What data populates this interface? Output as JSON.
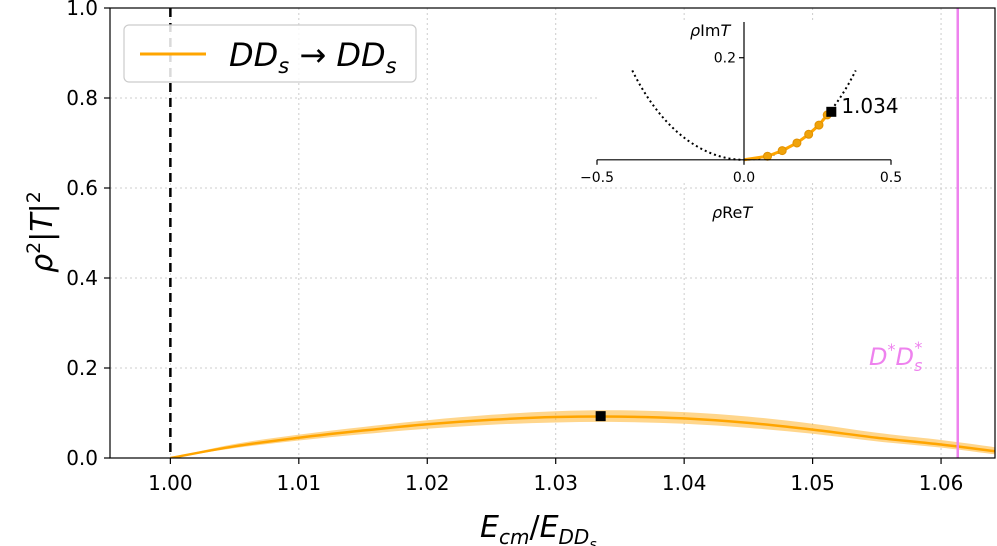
{
  "chart_data": [
    {
      "type": "line",
      "title": "",
      "xlabel": "E_cm / E_DDs",
      "ylabel": "ρ²|T|²",
      "xlim": [
        0.9953,
        1.0642
      ],
      "ylim": [
        0.0,
        1.0
      ],
      "grid": true,
      "legend": {
        "placement": "top-left",
        "entries": [
          {
            "label": "DDs → DDs",
            "color": "#ffa500"
          }
        ]
      },
      "x_ticks": [
        "1.00",
        "1.01",
        "1.02",
        "1.03",
        "1.04",
        "1.05",
        "1.06"
      ],
      "y_ticks": [
        "0.0",
        "0.2",
        "0.4",
        "0.6",
        "0.8",
        "1.0"
      ],
      "series": [
        {
          "name": "DDs → DDs",
          "color": "#ffa500",
          "x": [
            1.0,
            1.005,
            1.01,
            1.015,
            1.02,
            1.025,
            1.03,
            1.035,
            1.04,
            1.045,
            1.05,
            1.055,
            1.06,
            1.0642
          ],
          "y": [
            0.0,
            0.026,
            0.045,
            0.061,
            0.075,
            0.085,
            0.091,
            0.092,
            0.088,
            0.078,
            0.063,
            0.045,
            0.03,
            0.015
          ],
          "band_lower": [
            0.0,
            0.022,
            0.039,
            0.053,
            0.065,
            0.074,
            0.079,
            0.08,
            0.076,
            0.067,
            0.054,
            0.037,
            0.023,
            0.008
          ],
          "band_upper": [
            0.0,
            0.031,
            0.052,
            0.069,
            0.084,
            0.096,
            0.104,
            0.106,
            0.102,
            0.092,
            0.076,
            0.056,
            0.04,
            0.024
          ]
        }
      ],
      "markers": [
        {
          "x": 1.0335,
          "y": 0.093,
          "shape": "square",
          "color": "#000000"
        }
      ],
      "vlines": [
        {
          "x": 1.0,
          "color": "#000000",
          "style": "dashed",
          "label": ""
        },
        {
          "x": 1.0613,
          "color": "#ee82ee",
          "style": "solid",
          "label": "D*Ds*"
        }
      ]
    },
    {
      "type": "line",
      "title": "",
      "xlabel": "ρReT",
      "ylabel": "ρImT",
      "xlim": [
        -0.5,
        0.5
      ],
      "ylim": [
        -0.02,
        0.27
      ],
      "x_ticks": [
        "−0.5",
        "0.0",
        "0.5"
      ],
      "y_ticks": [
        "0.2"
      ],
      "unitarity_circle": {
        "color": "#000000",
        "style": "dotted",
        "x_range": [
          -0.38,
          0.38
        ]
      },
      "series": [
        {
          "name": "DDs → DDs",
          "color": "#ffa500",
          "points": [
            [
              0.0,
              0.0
            ],
            [
              0.08,
              0.007
            ],
            [
              0.13,
              0.018
            ],
            [
              0.18,
              0.033
            ],
            [
              0.22,
              0.05
            ],
            [
              0.255,
              0.068
            ],
            [
              0.283,
              0.088
            ]
          ]
        }
      ],
      "marker": {
        "x": 0.297,
        "y": 0.094,
        "label": "1.034"
      }
    }
  ]
}
